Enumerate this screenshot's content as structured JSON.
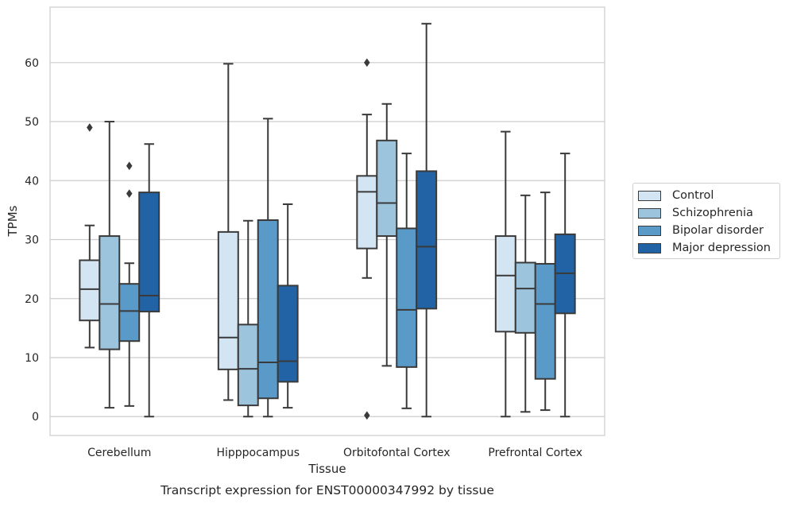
{
  "chart_data": {
    "type": "box",
    "title": "Transcript expression for ENST00000347992 by tissue",
    "xlabel": "Tissue",
    "ylabel": "TPMs",
    "ylim": [
      -3.2,
      69.4
    ],
    "yticks": [
      0,
      10,
      20,
      30,
      40,
      50,
      60
    ],
    "grid": "horizontal",
    "legend_position": "right",
    "categories": [
      "Cerebellum",
      "Hipppocampus",
      "Orbitofontal Cortex",
      "Prefrontal Cortex"
    ],
    "series": [
      {
        "name": "Control",
        "color": "#d3e4f3",
        "boxes": [
          {
            "whislo": 11.7,
            "q1": 16.3,
            "med": 21.6,
            "q3": 26.5,
            "whishi": 32.4,
            "fliers": [
              49.0
            ]
          },
          {
            "whislo": 2.8,
            "q1": 8.0,
            "med": 13.4,
            "q3": 31.3,
            "whishi": 59.8,
            "fliers": []
          },
          {
            "whislo": 23.5,
            "q1": 28.5,
            "med": 38.1,
            "q3": 40.8,
            "whishi": 51.2,
            "fliers": [
              60.0,
              0.2
            ]
          },
          {
            "whislo": 0.0,
            "q1": 14.4,
            "med": 23.9,
            "q3": 30.6,
            "whishi": 48.3,
            "fliers": []
          }
        ]
      },
      {
        "name": "Schizophrenia",
        "color": "#9cc4dd",
        "boxes": [
          {
            "whislo": 1.5,
            "q1": 11.4,
            "med": 19.1,
            "q3": 30.6,
            "whishi": 50.0,
            "fliers": []
          },
          {
            "whislo": 0.0,
            "q1": 1.9,
            "med": 8.1,
            "q3": 15.6,
            "whishi": 33.2,
            "fliers": []
          },
          {
            "whislo": 8.6,
            "q1": 30.6,
            "med": 36.2,
            "q3": 46.8,
            "whishi": 53.0,
            "fliers": []
          },
          {
            "whislo": 0.8,
            "q1": 14.2,
            "med": 21.7,
            "q3": 26.1,
            "whishi": 37.5,
            "fliers": []
          }
        ]
      },
      {
        "name": "Bipolar disorder",
        "color": "#5a9ac8",
        "boxes": [
          {
            "whislo": 1.8,
            "q1": 12.8,
            "med": 17.9,
            "q3": 22.5,
            "whishi": 26.0,
            "fliers": [
              42.5,
              37.8
            ]
          },
          {
            "whislo": 0.0,
            "q1": 3.1,
            "med": 9.2,
            "q3": 33.3,
            "whishi": 50.5,
            "fliers": []
          },
          {
            "whislo": 1.4,
            "q1": 8.4,
            "med": 18.1,
            "q3": 31.9,
            "whishi": 44.6,
            "fliers": []
          },
          {
            "whislo": 1.1,
            "q1": 6.4,
            "med": 19.1,
            "q3": 25.9,
            "whishi": 38.0,
            "fliers": []
          }
        ]
      },
      {
        "name": "Major depression",
        "color": "#2263a6",
        "boxes": [
          {
            "whislo": 0.0,
            "q1": 17.8,
            "med": 20.5,
            "q3": 38.0,
            "whishi": 46.2,
            "fliers": []
          },
          {
            "whislo": 1.5,
            "q1": 5.9,
            "med": 9.4,
            "q3": 22.2,
            "whishi": 36.0,
            "fliers": []
          },
          {
            "whislo": 0.0,
            "q1": 18.3,
            "med": 28.8,
            "q3": 41.6,
            "whishi": 66.6,
            "fliers": []
          },
          {
            "whislo": 0.0,
            "q1": 17.5,
            "med": 24.3,
            "q3": 30.9,
            "whishi": 44.6,
            "fliers": []
          }
        ]
      }
    ]
  }
}
